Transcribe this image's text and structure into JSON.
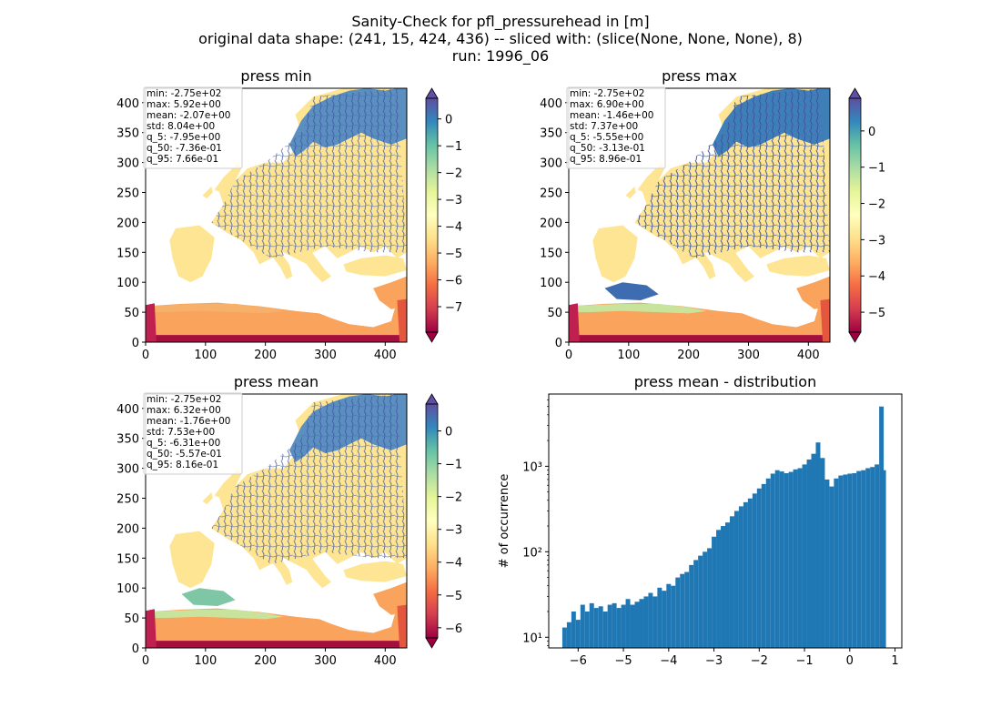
{
  "figure": {
    "title_lines": [
      "Sanity-Check for pfl_pressurehead in [m]",
      "original data shape: (241, 15, 424, 436) -- sliced with: (slice(None, None, None), 8)",
      "run: 1996_06"
    ]
  },
  "chart_data": [
    {
      "type": "heatmap",
      "title": "press min",
      "x_ticks": [
        "0",
        "100",
        "200",
        "300",
        "400"
      ],
      "y_ticks": [
        "0",
        "50",
        "100",
        "150",
        "200",
        "250",
        "300",
        "350",
        "400"
      ],
      "xlim": [
        0,
        436
      ],
      "ylim": [
        0,
        424
      ],
      "colorbar": {
        "ticks": [
          "0",
          "−1",
          "−2",
          "−3",
          "−4",
          "−5",
          "−6",
          "−7"
        ],
        "tick_values": [
          0,
          -1,
          -2,
          -3,
          -4,
          -5,
          -6,
          -7
        ],
        "range": [
          -7.95,
          0.77
        ],
        "colormap": "Spectral"
      },
      "stats": [
        "min: -2.75e+02",
        "max: 5.92e+00",
        "mean: -2.07e+00",
        "std: 8.04e+00",
        "q_5: -7.95e+00",
        "q_50: -7.36e-01",
        "q_95: 7.66e-01"
      ]
    },
    {
      "type": "heatmap",
      "title": "press max",
      "x_ticks": [
        "0",
        "100",
        "200",
        "300",
        "400"
      ],
      "y_ticks": [
        "0",
        "50",
        "100",
        "150",
        "200",
        "250",
        "300",
        "350",
        "400"
      ],
      "xlim": [
        0,
        436
      ],
      "ylim": [
        0,
        424
      ],
      "colorbar": {
        "ticks": [
          "0",
          "−1",
          "−2",
          "−3",
          "−4",
          "−5"
        ],
        "tick_values": [
          0,
          -1,
          -2,
          -3,
          -4,
          -5
        ],
        "range": [
          -5.55,
          0.9
        ],
        "colormap": "Spectral"
      },
      "stats": [
        "min: -2.75e+02",
        "max: 6.90e+00",
        "mean: -1.46e+00",
        "std: 7.37e+00",
        "q_5: -5.55e+00",
        "q_50: -3.13e-01",
        "q_95: 8.96e-01"
      ]
    },
    {
      "type": "heatmap",
      "title": "press mean",
      "x_ticks": [
        "0",
        "100",
        "200",
        "300",
        "400"
      ],
      "y_ticks": [
        "0",
        "50",
        "100",
        "150",
        "200",
        "250",
        "300",
        "350",
        "400"
      ],
      "xlim": [
        0,
        436
      ],
      "ylim": [
        0,
        424
      ],
      "colorbar": {
        "ticks": [
          "0",
          "−1",
          "−2",
          "−3",
          "−4",
          "−5",
          "−6"
        ],
        "tick_values": [
          0,
          -1,
          -2,
          -3,
          -4,
          -5,
          -6
        ],
        "range": [
          -6.31,
          0.82
        ],
        "colormap": "Spectral"
      },
      "stats": [
        "min: -2.75e+02",
        "max: 6.32e+00",
        "mean: -1.76e+00",
        "std: 7.53e+00",
        "q_5: -6.31e+00",
        "q_50: -5.57e-01",
        "q_95: 8.16e-01"
      ]
    },
    {
      "type": "bar",
      "title": "press mean - distribution",
      "ylabel": "# of occurrence",
      "xlabel": "",
      "x_ticks": [
        "−6",
        "−5",
        "−4",
        "−3",
        "−2",
        "−1",
        "0",
        "1"
      ],
      "x_tick_values": [
        -6,
        -5,
        -4,
        -3,
        -2,
        -1,
        0,
        1
      ],
      "y_scale": "log",
      "y_ticks": [
        "10¹",
        "10²",
        "10³"
      ],
      "y_tick_values": [
        10,
        100,
        1000
      ],
      "xlim": [
        -6.65,
        1.15
      ],
      "ylim": [
        7.5,
        7000
      ],
      "color": "#1f77b4",
      "series": [
        {
          "x_centers": [
            -6.3,
            -6.2,
            -6.1,
            -6.0,
            -5.9,
            -5.8,
            -5.7,
            -5.6,
            -5.5,
            -5.4,
            -5.3,
            -5.2,
            -5.1,
            -5.0,
            -4.9,
            -4.8,
            -4.7,
            -4.6,
            -4.5,
            -4.4,
            -4.3,
            -4.2,
            -4.1,
            -4.0,
            -3.9,
            -3.8,
            -3.7,
            -3.6,
            -3.5,
            -3.4,
            -3.3,
            -3.2,
            -3.1,
            -3.0,
            -2.9,
            -2.8,
            -2.7,
            -2.6,
            -2.5,
            -2.4,
            -2.3,
            -2.2,
            -2.1,
            -2.0,
            -1.9,
            -1.8,
            -1.7,
            -1.6,
            -1.5,
            -1.4,
            -1.3,
            -1.2,
            -1.1,
            -1.0,
            -0.9,
            -0.8,
            -0.7,
            -0.6,
            -0.5,
            -0.4,
            -0.3,
            -0.2,
            -0.1,
            0.0,
            0.1,
            0.2,
            0.3,
            0.4,
            0.5,
            0.6,
            0.7,
            0.75
          ],
          "values": [
            13,
            15,
            20,
            16,
            24,
            20,
            25,
            22,
            23,
            20,
            24,
            25,
            22,
            24,
            28,
            24,
            26,
            28,
            30,
            33,
            30,
            38,
            35,
            42,
            40,
            50,
            55,
            58,
            70,
            80,
            90,
            100,
            110,
            150,
            180,
            200,
            220,
            260,
            300,
            340,
            380,
            420,
            480,
            550,
            620,
            720,
            820,
            900,
            870,
            830,
            860,
            920,
            950,
            1050,
            1200,
            1400,
            1900,
            1250,
            700,
            580,
            720,
            780,
            800,
            820,
            830,
            880,
            900,
            950,
            980,
            1050,
            5000,
            900
          ]
        }
      ]
    }
  ]
}
